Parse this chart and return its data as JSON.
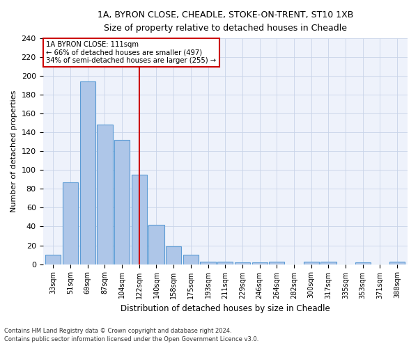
{
  "title_line1": "1A, BYRON CLOSE, CHEADLE, STOKE-ON-TRENT, ST10 1XB",
  "title_line2": "Size of property relative to detached houses in Cheadle",
  "xlabel": "Distribution of detached houses by size in Cheadle",
  "ylabel": "Number of detached properties",
  "bar_labels": [
    "33sqm",
    "51sqm",
    "69sqm",
    "87sqm",
    "104sqm",
    "122sqm",
    "140sqm",
    "158sqm",
    "175sqm",
    "193sqm",
    "211sqm",
    "229sqm",
    "246sqm",
    "264sqm",
    "282sqm",
    "300sqm",
    "317sqm",
    "335sqm",
    "353sqm",
    "371sqm",
    "388sqm"
  ],
  "bar_values": [
    10,
    87,
    194,
    148,
    132,
    95,
    42,
    19,
    10,
    3,
    3,
    2,
    2,
    3,
    0,
    3,
    3,
    0,
    2,
    0,
    3
  ],
  "bar_color": "#aec6e8",
  "bar_edge_color": "#5b9bd5",
  "vline_x": 5.0,
  "vline_color": "#cc0000",
  "annotation_title": "1A BYRON CLOSE: 111sqm",
  "annotation_line1": "← 66% of detached houses are smaller (497)",
  "annotation_line2": "34% of semi-detached houses are larger (255) →",
  "annotation_box_color": "#cc0000",
  "ylim": [
    0,
    240
  ],
  "yticks": [
    0,
    20,
    40,
    60,
    80,
    100,
    120,
    140,
    160,
    180,
    200,
    220,
    240
  ],
  "footnote_line1": "Contains HM Land Registry data © Crown copyright and database right 2024.",
  "footnote_line2": "Contains public sector information licensed under the Open Government Licence v3.0.",
  "bg_color": "#eef2fb",
  "grid_color": "#c8d4e8",
  "figsize": [
    6.0,
    5.0
  ],
  "dpi": 100
}
